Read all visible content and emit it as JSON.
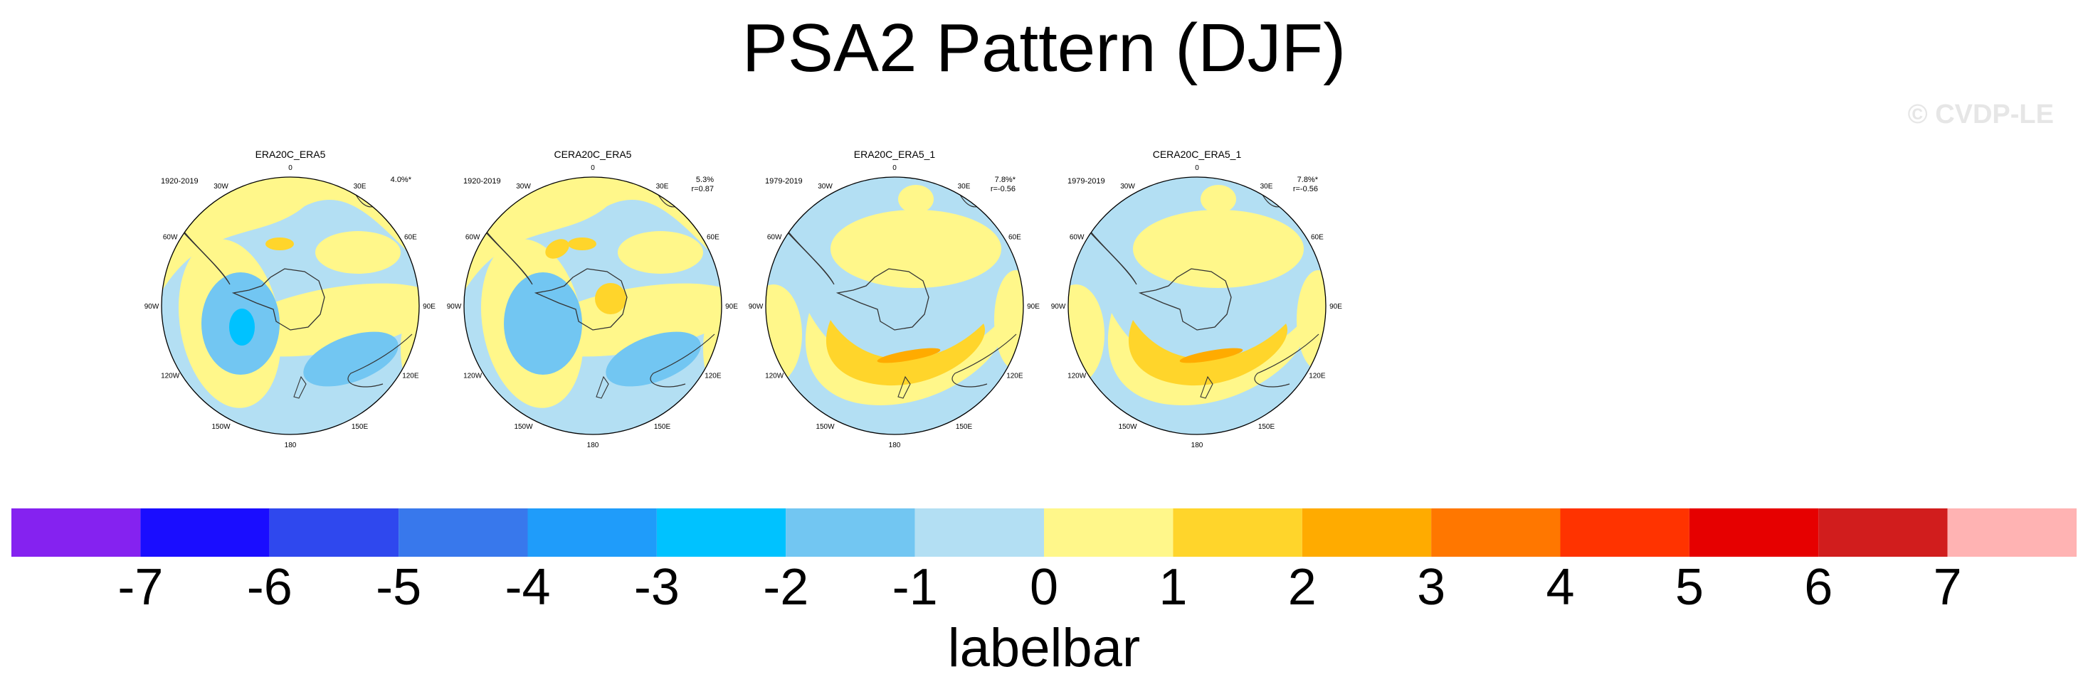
{
  "title": "PSA2 Pattern (DJF)",
  "watermark": "© CVDP-LE",
  "panels": [
    {
      "name": "ERA20C_ERA5",
      "period": "1920-2019",
      "stat1": "4.0%*",
      "stat2": ""
    },
    {
      "name": "CERA20C_ERA5",
      "period": "1920-2019",
      "stat1": "5.3%",
      "stat2": "r=0.87"
    },
    {
      "name": "ERA20C_ERA5_1",
      "period": "1979-2019",
      "stat1": "7.8%*",
      "stat2": "r=-0.56"
    },
    {
      "name": "CERA20C_ERA5_1",
      "period": "1979-2019",
      "stat1": "7.8%*",
      "stat2": "r=-0.56"
    }
  ],
  "longitude_labels": [
    "0",
    "30E",
    "60E",
    "90E",
    "120E",
    "150E",
    "180",
    "150W",
    "120W",
    "90W",
    "60W",
    "30W"
  ],
  "labelbar": {
    "title": "labelbar",
    "ticks": [
      "-7",
      "-6",
      "-5",
      "-4",
      "-3",
      "-2",
      "-1",
      "0",
      "1",
      "2",
      "3",
      "4",
      "5",
      "6",
      "7"
    ],
    "colors": [
      "#8522f0",
      "#1a0dff",
      "#2f48ee",
      "#3878ec",
      "#1f9cfa",
      "#00c2ff",
      "#72c6f2",
      "#b3dff3",
      "#fff78a",
      "#ffd52b",
      "#ffab00",
      "#ff7700",
      "#ff3300",
      "#e60000",
      "#d11d1d",
      "#ffb3b3"
    ]
  }
}
